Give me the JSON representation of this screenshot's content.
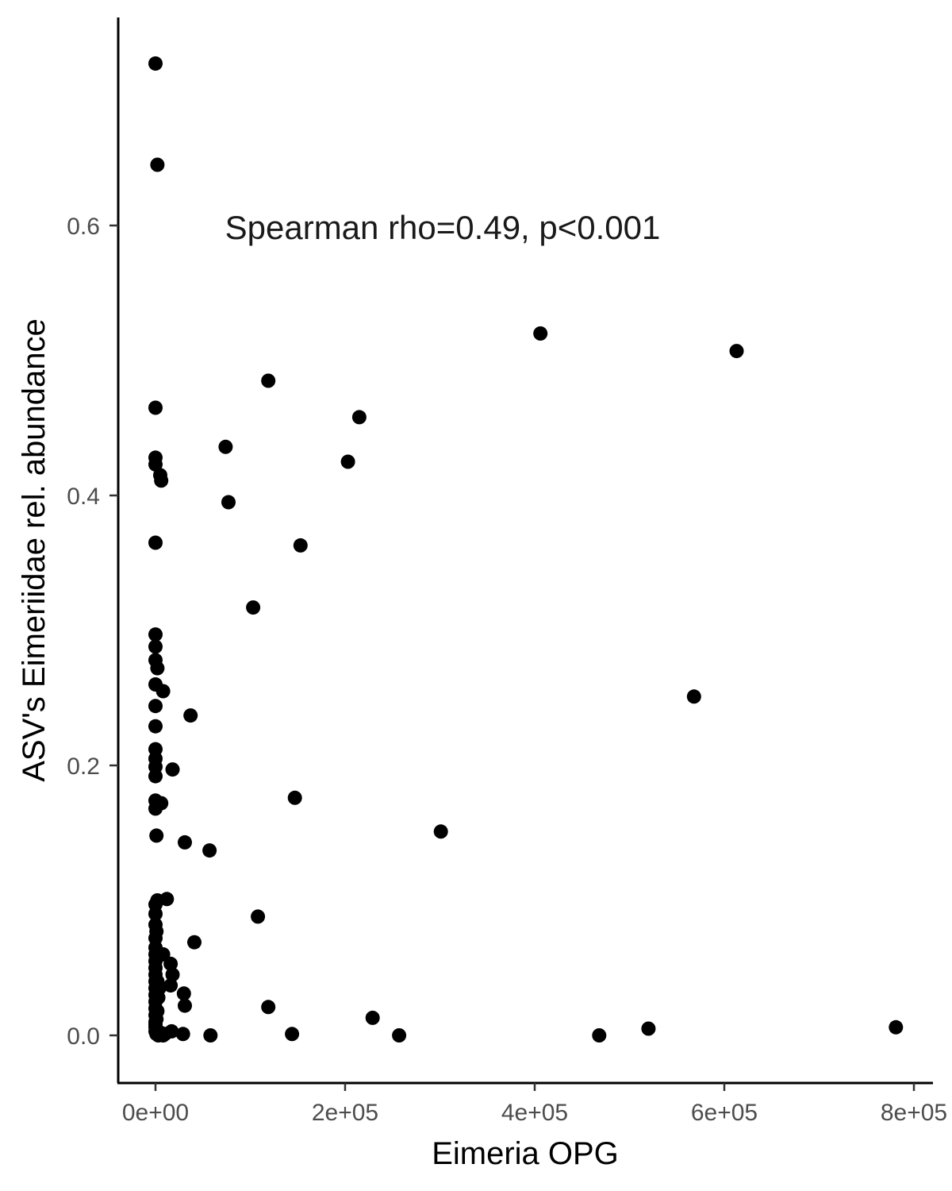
{
  "chart_data": {
    "type": "scatter",
    "xlabel": "Eimeria OPG",
    "ylabel": "ASV's Eimeriidae rel. abundance",
    "annotation": "Spearman rho=0.49, p<0.001",
    "xlim": [
      -4000,
      820000
    ],
    "ylim": [
      -0.035,
      0.75
    ],
    "x_ticks": [
      {
        "value": 0,
        "label": "0e+00"
      },
      {
        "value": 200000,
        "label": "2e+05"
      },
      {
        "value": 400000,
        "label": "4e+05"
      },
      {
        "value": 600000,
        "label": "6e+05"
      },
      {
        "value": 800000,
        "label": "8e+05"
      }
    ],
    "y_ticks": [
      {
        "value": 0.0,
        "label": "0.0"
      },
      {
        "value": 0.2,
        "label": "0.2"
      },
      {
        "value": 0.4,
        "label": "0.4"
      },
      {
        "value": 0.6,
        "label": "0.6"
      }
    ],
    "grid": false,
    "legend": "none",
    "point_color": "#000000",
    "points": [
      [
        0,
        0.72
      ],
      [
        2000,
        0.645
      ],
      [
        0,
        0.465
      ],
      [
        0,
        0.428
      ],
      [
        0,
        0.423
      ],
      [
        5000,
        0.415
      ],
      [
        6000,
        0.411
      ],
      [
        0,
        0.365
      ],
      [
        0,
        0.297
      ],
      [
        0,
        0.288
      ],
      [
        0,
        0.278
      ],
      [
        2000,
        0.272
      ],
      [
        0,
        0.26
      ],
      [
        8000,
        0.255
      ],
      [
        0,
        0.244
      ],
      [
        0,
        0.229
      ],
      [
        0,
        0.212
      ],
      [
        0,
        0.205
      ],
      [
        0,
        0.199
      ],
      [
        0,
        0.192
      ],
      [
        18000,
        0.197
      ],
      [
        0,
        0.174
      ],
      [
        0,
        0.168
      ],
      [
        6000,
        0.172
      ],
      [
        1000,
        0.148
      ],
      [
        37000,
        0.237
      ],
      [
        31000,
        0.143
      ],
      [
        57000,
        0.137
      ],
      [
        74000,
        0.436
      ],
      [
        77000,
        0.395
      ],
      [
        103000,
        0.317
      ],
      [
        119000,
        0.485
      ],
      [
        147000,
        0.176
      ],
      [
        153000,
        0.363
      ],
      [
        203000,
        0.425
      ],
      [
        215000,
        0.458
      ],
      [
        301000,
        0.151
      ],
      [
        406000,
        0.52
      ],
      [
        568000,
        0.251
      ],
      [
        613000,
        0.507
      ],
      [
        0,
        0.097
      ],
      [
        2000,
        0.1
      ],
      [
        12000,
        0.101
      ],
      [
        0,
        0.09
      ],
      [
        0,
        0.082
      ],
      [
        1000,
        0.077
      ],
      [
        0,
        0.072
      ],
      [
        0,
        0.065
      ],
      [
        0,
        0.06
      ],
      [
        0,
        0.055
      ],
      [
        0,
        0.05
      ],
      [
        0,
        0.045
      ],
      [
        0,
        0.04
      ],
      [
        0,
        0.035
      ],
      [
        0,
        0.03
      ],
      [
        0,
        0.025
      ],
      [
        0,
        0.02
      ],
      [
        0,
        0.015
      ],
      [
        0,
        0.01
      ],
      [
        0,
        0.006
      ],
      [
        0,
        0.003
      ],
      [
        1000,
        0.001
      ],
      [
        3000,
        0.0
      ],
      [
        5000,
        0.002
      ],
      [
        8000,
        0.0
      ],
      [
        10000,
        0.001
      ],
      [
        2000,
        0.04
      ],
      [
        3000,
        0.028
      ],
      [
        4000,
        0.035
      ],
      [
        8000,
        0.06
      ],
      [
        16000,
        0.053
      ],
      [
        18000,
        0.045
      ],
      [
        16000,
        0.037
      ],
      [
        30000,
        0.031
      ],
      [
        31000,
        0.022
      ],
      [
        41000,
        0.069
      ],
      [
        108000,
        0.088
      ],
      [
        119000,
        0.021
      ],
      [
        17000,
        0.003
      ],
      [
        29000,
        0.001
      ],
      [
        58000,
        0.0
      ],
      [
        144000,
        0.001
      ],
      [
        229000,
        0.013
      ],
      [
        257000,
        0.0
      ],
      [
        468000,
        0.0
      ],
      [
        520000,
        0.005
      ],
      [
        781000,
        0.006
      ],
      [
        1000,
        0.012
      ],
      [
        2000,
        0.018
      ],
      [
        0,
        0.008
      ]
    ]
  }
}
